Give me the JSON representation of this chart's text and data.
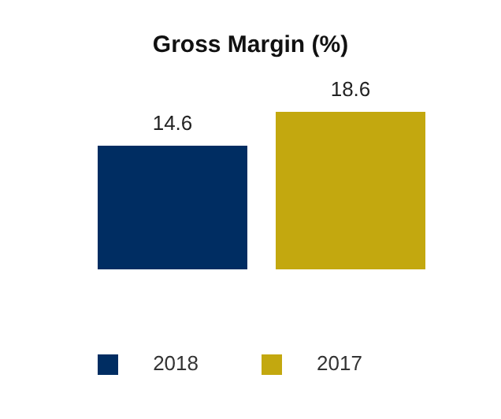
{
  "chart_data": {
    "type": "bar",
    "title": "Gross Margin (%)",
    "categories": [
      null
    ],
    "series": [
      {
        "name": "2018",
        "color": "#002d62",
        "values": [
          14.6
        ]
      },
      {
        "name": "2017",
        "color": "#c3a80f",
        "values": [
          18.6
        ]
      }
    ],
    "data_labels": true,
    "legend": "bottom"
  }
}
